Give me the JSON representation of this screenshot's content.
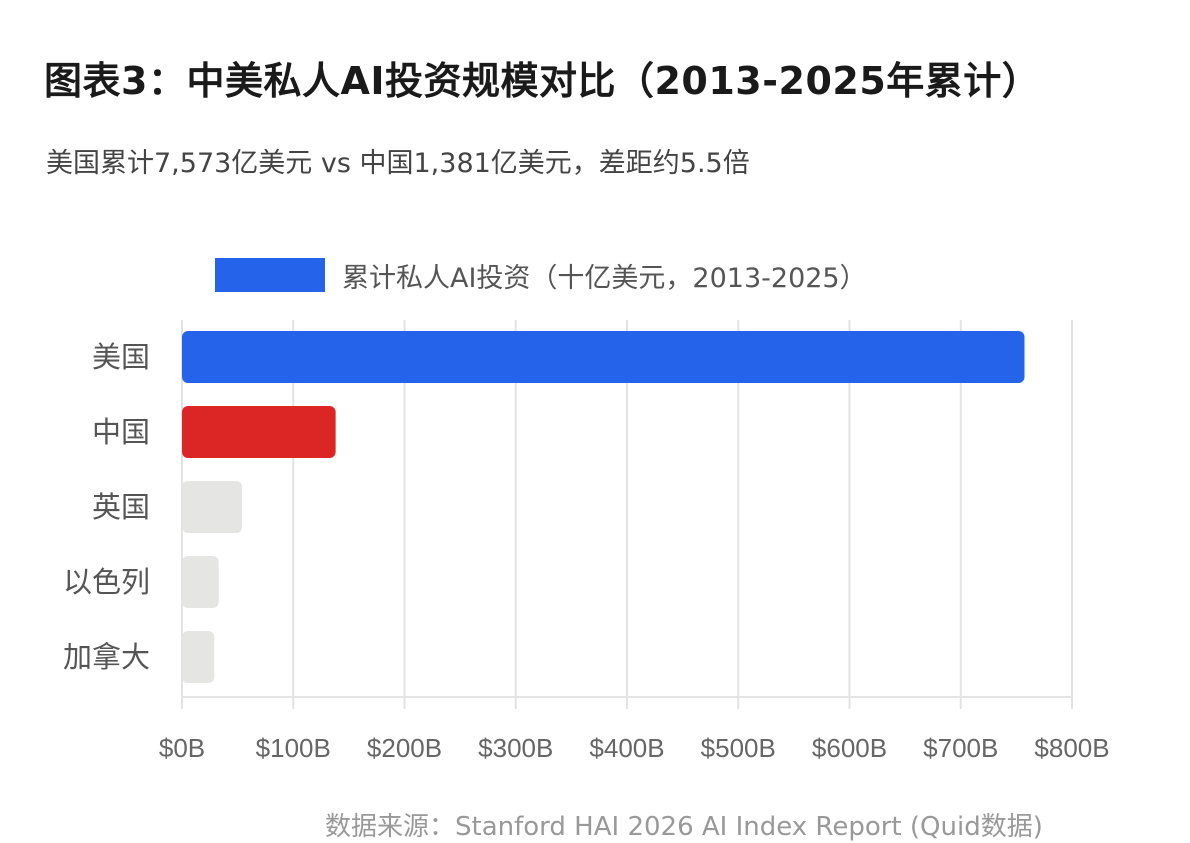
{
  "header": {
    "title": "图表3：中美私人AI投资规模对比（2013-2025年累计）",
    "subtitle": "美国累计7,573亿美元 vs 中国1,381亿美元，差距约5.5倍"
  },
  "legend": {
    "label": "累计私人AI投资（十亿美元，2013-2025）",
    "color": "#2563eb"
  },
  "chart_data": {
    "type": "bar",
    "orientation": "horizontal",
    "categories": [
      "美国",
      "中国",
      "英国",
      "以色列",
      "加拿大"
    ],
    "series": [
      {
        "name": "累计私人AI投资（十亿美元，2013-2025）",
        "values": [
          757.3,
          138.1,
          54,
          33,
          29
        ]
      }
    ],
    "bar_colors": [
      "#2563eb",
      "#dc2626",
      "#e5e5e3",
      "#e5e5e3",
      "#e5e5e3"
    ],
    "x_ticks": [
      "$0B",
      "$100B",
      "$200B",
      "$300B",
      "$400B",
      "$500B",
      "$600B",
      "$700B",
      "$800B"
    ],
    "xlim": [
      0,
      800
    ],
    "grid": true,
    "legend_position": "top"
  },
  "footer": {
    "source": "数据来源：Stanford HAI 2026 AI Index Report (Quid数据)"
  }
}
